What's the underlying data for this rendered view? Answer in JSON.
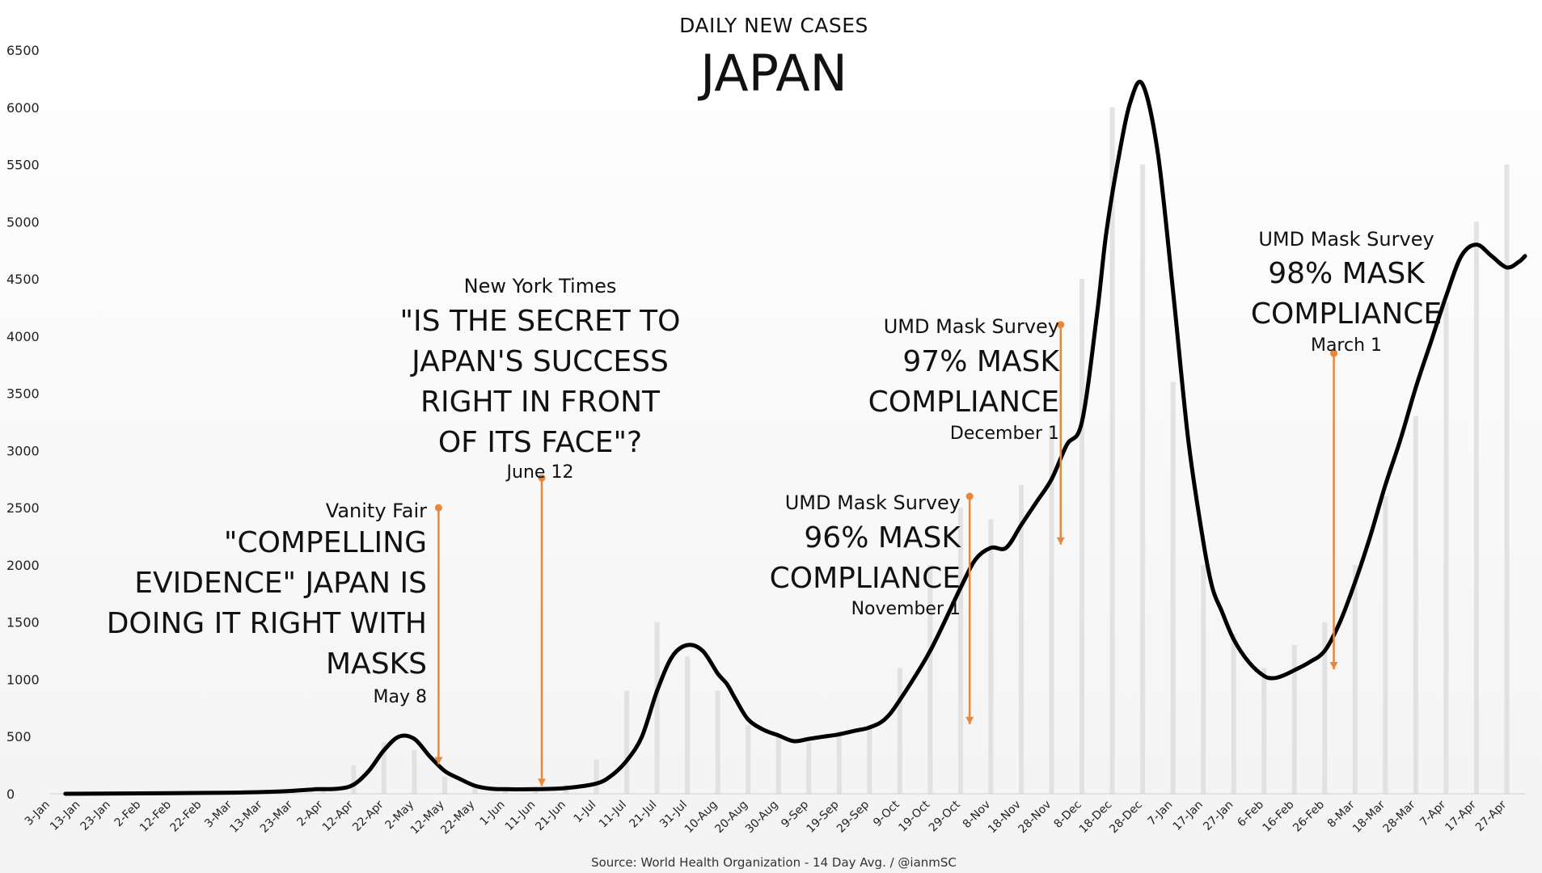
{
  "colors": {
    "line": "#000000",
    "bars": "#dcdcdc",
    "arrow": "#e8873a",
    "background_top": "#ffffff",
    "background_bottom": "#f4f4f4"
  },
  "chart_data": {
    "type": "line",
    "title": "DAILY NEW CASES",
    "subtitle": "JAPAN",
    "source": "Source: World Health Organization - 14 Day Avg. / @ianmSC",
    "ylim": [
      0,
      6500
    ],
    "y_ticks": [
      "0",
      "500",
      "1000",
      "1500",
      "2000",
      "2500",
      "3000",
      "3500",
      "4000",
      "4500",
      "5000",
      "5500",
      "6000",
      "6500"
    ],
    "x_ticks": [
      "3-Jan",
      "13-Jan",
      "23-Jan",
      "2-Feb",
      "12-Feb",
      "22-Feb",
      "3-Mar",
      "13-Mar",
      "23-Mar",
      "2-Apr",
      "12-Apr",
      "22-Apr",
      "2-May",
      "12-May",
      "22-May",
      "1-Jun",
      "11-Jun",
      "21-Jun",
      "1-Jul",
      "11-Jul",
      "21-Jul",
      "31-Jul",
      "10-Aug",
      "20-Aug",
      "30-Aug",
      "9-Sep",
      "19-Sep",
      "29-Sep",
      "9-Oct",
      "19-Oct",
      "29-Oct",
      "8-Nov",
      "18-Nov",
      "28-Nov",
      "8-Dec",
      "18-Dec",
      "28-Dec",
      "7-Jan",
      "17-Jan",
      "27-Jan",
      "6-Feb",
      "16-Feb",
      "26-Feb",
      "8-Mar",
      "18-Mar",
      "28-Mar",
      "7-Apr",
      "17-Apr",
      "27-Apr"
    ],
    "xlim_days": [
      0,
      486
    ],
    "grid": false,
    "series": [
      {
        "name": "",
        "x_days": [
          5,
          40,
          60,
          75,
          85,
          88,
          95,
          100,
          105,
          110,
          115,
          120,
          125,
          130,
          135,
          140,
          145,
          150,
          160,
          170,
          180,
          185,
          190,
          195,
          200,
          205,
          210,
          215,
          220,
          223,
          226,
          230,
          235,
          240,
          245,
          250,
          255,
          260,
          265,
          270,
          275,
          280,
          290,
          300,
          305,
          310,
          315,
          320,
          325,
          330,
          335,
          340,
          345,
          348,
          352,
          356,
          360,
          365,
          370,
          375,
          380,
          383,
          386,
          390,
          395,
          400,
          403,
          406,
          410,
          415,
          420,
          425,
          430,
          435,
          440,
          445,
          450,
          455,
          460,
          465,
          470,
          475,
          480,
          484,
          486
        ],
        "values": [
          0,
          5,
          10,
          20,
          35,
          40,
          45,
          80,
          200,
          380,
          500,
          480,
          330,
          200,
          130,
          70,
          45,
          40,
          40,
          50,
          90,
          160,
          290,
          500,
          900,
          1200,
          1300,
          1250,
          1050,
          960,
          820,
          650,
          560,
          510,
          460,
          480,
          500,
          520,
          550,
          580,
          650,
          820,
          1250,
          1800,
          2050,
          2150,
          2150,
          2350,
          2550,
          2750,
          3050,
          3250,
          4200,
          4900,
          5550,
          6050,
          6200,
          5600,
          4400,
          3100,
          2200,
          1800,
          1600,
          1350,
          1150,
          1030,
          1010,
          1030,
          1080,
          1150,
          1250,
          1500,
          1850,
          2250,
          2700,
          3100,
          3550,
          3950,
          4350,
          4700,
          4800,
          4700,
          4600,
          4650,
          4700
        ]
      },
      {
        "name": "",
        "type": "bar",
        "x_days": [
          0,
          10,
          20,
          30,
          40,
          50,
          60,
          70,
          80,
          90,
          100,
          110,
          120,
          130,
          140,
          150,
          160,
          170,
          180,
          190,
          200,
          210,
          220,
          230,
          240,
          250,
          260,
          270,
          280,
          290,
          300,
          310,
          320,
          330,
          340,
          350,
          360,
          370,
          380,
          390,
          400,
          410,
          420,
          430,
          440,
          450,
          460,
          470,
          480
        ],
        "values": [
          2,
          3,
          5,
          10,
          15,
          20,
          25,
          30,
          40,
          60,
          250,
          450,
          380,
          150,
          50,
          40,
          40,
          80,
          300,
          900,
          1500,
          1200,
          900,
          600,
          500,
          450,
          550,
          600,
          1100,
          2000,
          2500,
          2400,
          2700,
          3200,
          4500,
          6000,
          5500,
          3600,
          2000,
          1400,
          1100,
          1300,
          1500,
          2000,
          2600,
          3300,
          4300,
          5000,
          5500
        ]
      }
    ],
    "annotations": [
      {
        "source": "Vanity Fair",
        "headline": [
          "\"COMPELLING",
          "EVIDENCE\" JAPAN IS",
          "DOING IT RIGHT WITH",
          "MASKS"
        ],
        "date": "May 8",
        "day": 128,
        "value": 230,
        "arrow_top": 2500
      },
      {
        "source": "New York Times",
        "headline": [
          "\"IS THE SECRET TO",
          "JAPAN'S SUCCESS",
          "RIGHT IN FRONT",
          "OF ITS FACE\"?"
        ],
        "date": "June 12",
        "day": 162,
        "value": 40,
        "arrow_top": 2760
      },
      {
        "source": "UMD Mask Survey",
        "headline": [
          "96% MASK",
          "COMPLIANCE"
        ],
        "date": "November 1",
        "day": 303,
        "value": 580,
        "arrow_top": 2600
      },
      {
        "source": "UMD Mask Survey",
        "headline": [
          "97% MASK",
          "COMPLIANCE"
        ],
        "date": "December 1",
        "day": 333,
        "value": 2150,
        "arrow_top": 4100
      },
      {
        "source": "UMD Mask Survey",
        "headline": [
          "98% MASK",
          "COMPLIANCE"
        ],
        "date": "March 1",
        "day": 423,
        "value": 1060,
        "arrow_top": 3850
      }
    ]
  }
}
